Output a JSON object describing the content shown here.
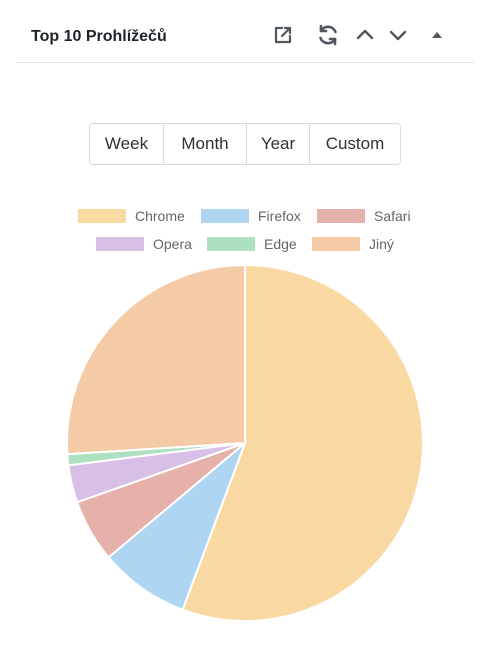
{
  "widget": {
    "title": "Top 10 Prohlížečů"
  },
  "header_icons": [
    "external-link-icon",
    "refresh-icon",
    "chevron-up-icon",
    "chevron-down-icon",
    "triangle-up-icon"
  ],
  "range_buttons": [
    "Week",
    "Month",
    "Year",
    "Custom"
  ],
  "colors": {
    "Chrome": "#fad8a2",
    "Firefox": "#aed5f1",
    "Safari": "#e6b0ab",
    "Opera": "#d8bfe6",
    "Edge": "#ade0c1",
    "Jiny": "#f4caa7"
  },
  "chart_data": {
    "type": "pie",
    "title": "",
    "legend_placement": "top",
    "labels": [
      "Chrome",
      "Firefox",
      "Safari",
      "Opera",
      "Edge",
      "Jiný"
    ],
    "values": [
      55.7,
      8.2,
      5.7,
      3.4,
      1.0,
      26.0
    ],
    "colors": [
      "#fad8a2",
      "#aed5f1",
      "#e6b0ab",
      "#d8bfe6",
      "#ade0c1",
      "#f4caa7"
    ]
  }
}
